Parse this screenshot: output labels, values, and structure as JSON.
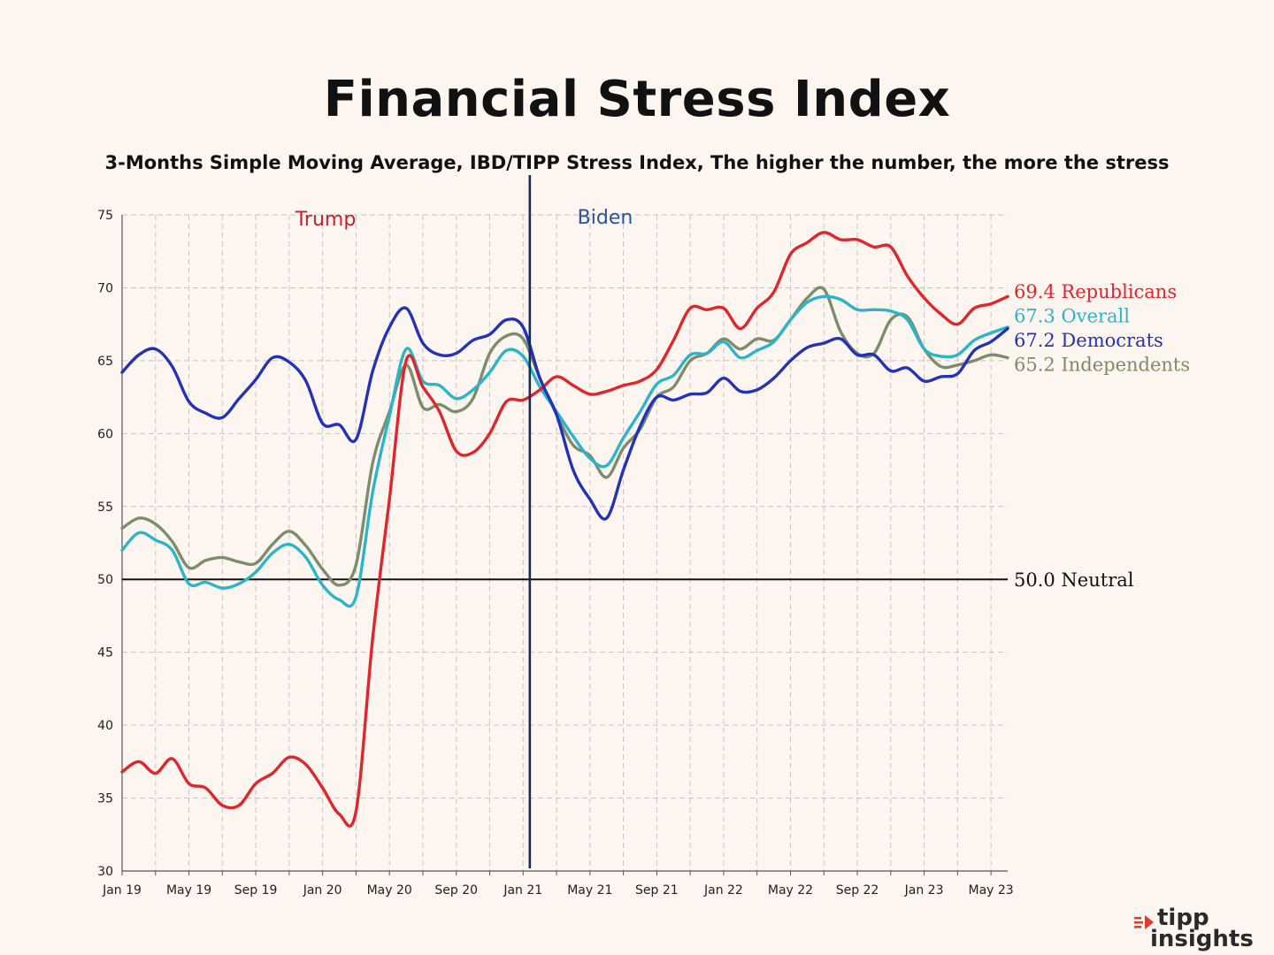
{
  "title": "Financial Stress Index",
  "subtitle": "3-Months Simple Moving Average, IBD/TIPP Stress Index, The higher the number, the more the stress",
  "logo": {
    "line1": "tipp",
    "line2": "insights",
    "accent": "#e03a2f"
  },
  "chart_data": {
    "type": "line",
    "ylim": [
      30,
      75
    ],
    "yticks": [
      30,
      35,
      40,
      45,
      50,
      55,
      60,
      65,
      70,
      75
    ],
    "x_count": 54,
    "xticks": [
      {
        "label": "Jan 19",
        "index": 0
      },
      {
        "label": "May 19",
        "index": 4
      },
      {
        "label": "Sep 19",
        "index": 8
      },
      {
        "label": "Jan 20",
        "index": 12
      },
      {
        "label": "May 20",
        "index": 16
      },
      {
        "label": "Sep 20",
        "index": 20
      },
      {
        "label": "Jan 21",
        "index": 24
      },
      {
        "label": "May 21",
        "index": 28
      },
      {
        "label": "Sep 21",
        "index": 32
      },
      {
        "label": "Jan 22",
        "index": 36
      },
      {
        "label": "May 22",
        "index": 40
      },
      {
        "label": "Sep 22",
        "index": 44
      },
      {
        "label": "Jan 23",
        "index": 48
      },
      {
        "label": "May 23",
        "index": 52
      }
    ],
    "grid": true,
    "reference_line": {
      "value": 50,
      "label": "50.0 Neutral",
      "color": "#111111"
    },
    "divider": {
      "index": 24.4,
      "left_label": "Trump",
      "right_label": "Biden",
      "left_color": "#c8202a",
      "right_color": "#2b52a0",
      "color": "#0c2d5e"
    },
    "series": [
      {
        "name": "Independents",
        "end_label": "65.2 Independents",
        "color": "#7d8c6a",
        "values": [
          53.5,
          54.2,
          53.8,
          52.6,
          50.8,
          51.3,
          51.5,
          51.2,
          51.1,
          52.4,
          53.3,
          52.3,
          50.7,
          49.6,
          51.0,
          58.0,
          61.5,
          64.7,
          61.8,
          62.0,
          61.5,
          62.4,
          65.5,
          66.7,
          66.5,
          63.8,
          61.3,
          59.2,
          58.5,
          57.0,
          59.0,
          60.3,
          62.5,
          63.2,
          65.0,
          65.5,
          66.5,
          65.8,
          66.5,
          66.4,
          67.8,
          69.3,
          69.9,
          67.0,
          65.5,
          65.5,
          67.8,
          68.0,
          65.8,
          64.6,
          64.7,
          65.0,
          65.4,
          65.2
        ]
      },
      {
        "name": "Overall",
        "end_label": "67.3 Overall",
        "color": "#2bb5c8",
        "values": [
          52.0,
          53.2,
          52.7,
          52.0,
          49.7,
          49.8,
          49.4,
          49.7,
          50.5,
          51.8,
          52.4,
          51.5,
          49.6,
          48.6,
          48.8,
          56.0,
          61.2,
          65.8,
          63.6,
          63.3,
          62.4,
          63.0,
          64.2,
          65.7,
          65.3,
          63.2,
          61.5,
          59.8,
          58.3,
          57.8,
          59.7,
          61.5,
          63.4,
          64.0,
          65.4,
          65.5,
          66.3,
          65.2,
          65.7,
          66.3,
          67.8,
          69.0,
          69.4,
          69.2,
          68.5,
          68.5,
          68.4,
          67.8,
          65.8,
          65.3,
          65.4,
          66.4,
          66.9,
          67.3
        ]
      },
      {
        "name": "Republicans",
        "end_label": "69.4 Republicans",
        "color": "#e0262b",
        "values": [
          36.8,
          37.5,
          36.7,
          37.7,
          36.0,
          35.7,
          34.5,
          34.5,
          36.0,
          36.7,
          37.8,
          37.3,
          35.7,
          33.9,
          34.1,
          46.0,
          55.5,
          65.0,
          63.2,
          61.5,
          58.8,
          58.7,
          60.0,
          62.2,
          62.3,
          63.0,
          63.9,
          63.3,
          62.7,
          62.9,
          63.3,
          63.6,
          64.4,
          66.4,
          68.6,
          68.5,
          68.6,
          67.2,
          68.6,
          69.7,
          72.3,
          73.1,
          73.8,
          73.3,
          73.3,
          72.8,
          72.8,
          70.8,
          69.3,
          68.2,
          67.5,
          68.6,
          68.9,
          69.4
        ]
      },
      {
        "name": "Democrats",
        "end_label": "67.2 Democrats",
        "color": "#2332b8",
        "values": [
          64.2,
          65.4,
          65.8,
          64.6,
          62.2,
          61.4,
          61.1,
          62.4,
          63.7,
          65.2,
          64.9,
          63.6,
          60.7,
          60.6,
          59.6,
          64.3,
          67.3,
          68.6,
          66.2,
          65.4,
          65.5,
          66.4,
          66.8,
          67.8,
          67.3,
          63.8,
          61.3,
          57.5,
          55.5,
          54.2,
          57.5,
          60.5,
          62.5,
          62.3,
          62.7,
          62.8,
          63.8,
          62.9,
          63.0,
          63.8,
          65.0,
          65.9,
          66.2,
          66.5,
          65.4,
          65.4,
          64.3,
          64.5,
          63.6,
          63.9,
          64.1,
          65.7,
          66.3,
          67.2
        ]
      }
    ]
  }
}
